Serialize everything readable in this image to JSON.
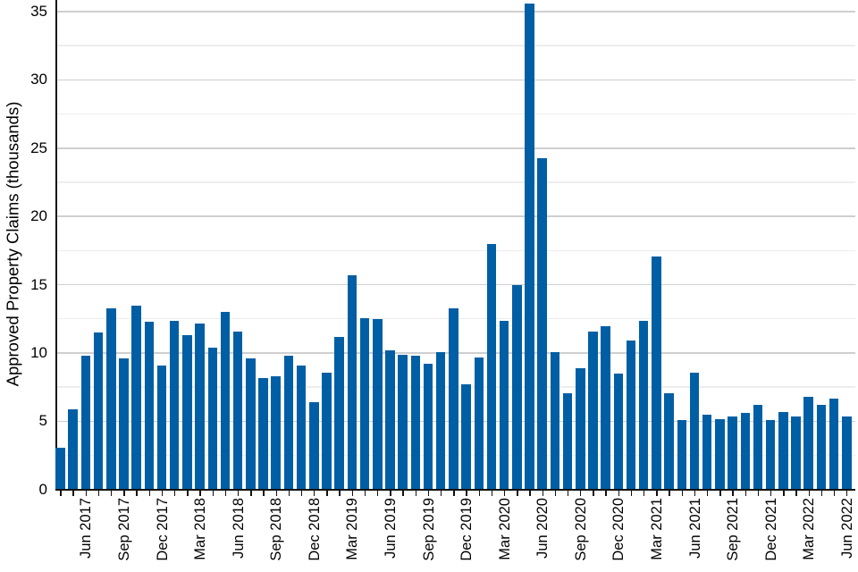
{
  "chart_data": {
    "type": "bar",
    "title": "",
    "xlabel": "",
    "ylabel": "Approved Property Claims (thousands)",
    "ylim": [
      0,
      35.9
    ],
    "y_ticks": [
      0,
      5,
      10,
      15,
      20,
      25,
      30,
      35
    ],
    "y_minor_gridlines": [
      2.5,
      7.5,
      12.5,
      17.5,
      22.5,
      27.5,
      32.5
    ],
    "grid": "horizontal-major-and-minor",
    "legend": "none",
    "x_label_start_index": 2,
    "x_label_every": 3,
    "x_labels_shown": [
      "Jun 2017",
      "Sep 2017",
      "Dec 2017",
      "Mar 2018",
      "Jun 2018",
      "Sep 2018",
      "Dec 2018",
      "Mar 2019",
      "Jun 2019",
      "Sep 2019",
      "Dec 2019",
      "Mar 2020",
      "Jun 2020",
      "Sep 2020",
      "Dec 2020",
      "Mar 2021",
      "Jun 2021",
      "Sep 2021",
      "Dec 2021",
      "Mar 2022",
      "Jun 2022"
    ],
    "categories": [
      "Apr 2017",
      "May 2017",
      "Jun 2017",
      "Jul 2017",
      "Aug 2017",
      "Sep 2017",
      "Oct 2017",
      "Nov 2017",
      "Dec 2017",
      "Jan 2018",
      "Feb 2018",
      "Mar 2018",
      "Apr 2018",
      "May 2018",
      "Jun 2018",
      "Jul 2018",
      "Aug 2018",
      "Sep 2018",
      "Oct 2018",
      "Nov 2018",
      "Dec 2018",
      "Jan 2019",
      "Feb 2019",
      "Mar 2019",
      "Apr 2019",
      "May 2019",
      "Jun 2019",
      "Jul 2019",
      "Aug 2019",
      "Sep 2019",
      "Oct 2019",
      "Nov 2019",
      "Dec 2019",
      "Jan 2020",
      "Feb 2020",
      "Mar 2020",
      "Apr 2020",
      "May 2020",
      "Jun 2020",
      "Jul 2020",
      "Aug 2020",
      "Sep 2020",
      "Oct 2020",
      "Nov 2020",
      "Dec 2020",
      "Jan 2021",
      "Feb 2021",
      "Mar 2021",
      "Apr 2021",
      "May 2021",
      "Jun 2021",
      "Jul 2021",
      "Aug 2021",
      "Sep 2021",
      "Oct 2021",
      "Nov 2021",
      "Dec 2021",
      "Jan 2022",
      "Feb 2022",
      "Mar 2022",
      "Apr 2022",
      "May 2022",
      "Jun 2022"
    ],
    "values": [
      3.0,
      5.8,
      9.7,
      11.4,
      13.2,
      9.5,
      13.4,
      12.2,
      9.0,
      12.3,
      11.2,
      12.1,
      10.3,
      12.9,
      11.5,
      9.5,
      8.1,
      8.2,
      9.7,
      9.0,
      6.3,
      8.5,
      11.1,
      15.6,
      12.5,
      12.4,
      10.1,
      9.8,
      9.7,
      9.1,
      10.0,
      13.2,
      7.6,
      9.6,
      17.9,
      12.3,
      14.9,
      35.5,
      24.2,
      10.0,
      7.0,
      8.8,
      11.5,
      11.9,
      8.4,
      10.8,
      12.3,
      17.0,
      7.0,
      5.0,
      8.5,
      5.4,
      5.1,
      5.3,
      5.5,
      6.1,
      5.0,
      5.6,
      5.3,
      6.7,
      6.1,
      6.6,
      5.3
    ],
    "colors": {
      "bar": "#005fa4",
      "axis": "#111111",
      "major_gridline": "#cfcfcf",
      "minor_gridline": "#ededed",
      "text": "#000000",
      "background": "#ffffff"
    }
  }
}
